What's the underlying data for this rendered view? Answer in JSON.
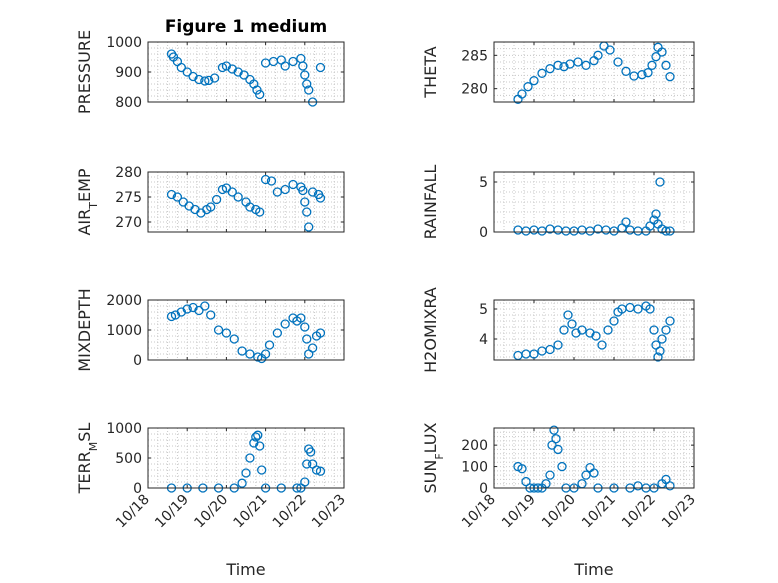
{
  "chart_data": [
    {
      "type": "scatter",
      "ylabel": "PRESSURE",
      "title": "Figure 1 medium",
      "xlabel": "",
      "marker_color": "#0072BD",
      "xlim": [
        0,
        5
      ],
      "ylim": [
        800,
        1000
      ],
      "yticks": [
        800,
        900,
        1000
      ],
      "xticks": [
        0,
        1,
        2,
        3,
        4,
        5
      ],
      "grid": true,
      "x": [
        0.6,
        0.65,
        0.75,
        0.85,
        1.0,
        1.15,
        1.3,
        1.45,
        1.55,
        1.7,
        1.9,
        2.0,
        2.15,
        2.3,
        2.45,
        2.6,
        2.7,
        2.78,
        2.85,
        3.0,
        3.2,
        3.4,
        3.5,
        3.7,
        3.9,
        3.95,
        4.0,
        4.05,
        4.1,
        4.2,
        4.4
      ],
      "y": [
        960,
        950,
        935,
        915,
        900,
        885,
        875,
        870,
        872,
        880,
        915,
        920,
        910,
        900,
        890,
        875,
        860,
        840,
        825,
        930,
        935,
        940,
        920,
        935,
        945,
        920,
        890,
        860,
        840,
        800,
        915
      ]
    },
    {
      "type": "scatter",
      "ylabel": "THETA",
      "title": "",
      "xlabel": "",
      "marker_color": "#0072BD",
      "xlim": [
        0,
        5
      ],
      "ylim": [
        278,
        287
      ],
      "yticks": [
        280,
        285
      ],
      "xticks": [
        0,
        1,
        2,
        3,
        4,
        5
      ],
      "grid": true,
      "x": [
        0.6,
        0.7,
        0.85,
        1.0,
        1.2,
        1.4,
        1.6,
        1.75,
        1.9,
        2.1,
        2.3,
        2.5,
        2.6,
        2.75,
        2.9,
        3.1,
        3.3,
        3.5,
        3.7,
        3.85,
        3.95,
        4.05,
        4.1,
        4.2,
        4.3,
        4.4
      ],
      "y": [
        278.4,
        279.2,
        280.3,
        281.2,
        282.3,
        283.0,
        283.5,
        283.3,
        283.7,
        284.0,
        283.5,
        284.2,
        285.0,
        286.4,
        285.8,
        284.0,
        282.6,
        281.9,
        282.1,
        282.4,
        283.5,
        284.8,
        286.2,
        285.5,
        283.5,
        281.8
      ]
    },
    {
      "type": "scatter",
      "ylabel": "AIR_T EMP",
      "title": "",
      "xlabel": "",
      "marker_color": "#0072BD",
      "xlim": [
        0,
        5
      ],
      "ylim": [
        268,
        280
      ],
      "yticks": [
        270,
        275,
        280
      ],
      "xticks": [
        0,
        1,
        2,
        3,
        4,
        5
      ],
      "grid": true,
      "x": [
        0.6,
        0.75,
        0.9,
        1.05,
        1.2,
        1.35,
        1.5,
        1.6,
        1.75,
        1.9,
        2.0,
        2.15,
        2.3,
        2.5,
        2.6,
        2.75,
        2.85,
        3.0,
        3.15,
        3.3,
        3.5,
        3.7,
        3.9,
        3.95,
        4.0,
        4.05,
        4.1,
        4.2,
        4.35,
        4.4
      ],
      "y": [
        275.5,
        275.0,
        274.0,
        273.2,
        272.5,
        271.8,
        272.5,
        273.0,
        274.5,
        276.5,
        276.8,
        276.0,
        275.0,
        274.0,
        273.0,
        272.5,
        272.0,
        278.5,
        278.2,
        276.0,
        276.5,
        277.5,
        277.0,
        276.3,
        274.0,
        272.0,
        269.0,
        276.0,
        275.5,
        274.8
      ]
    },
    {
      "type": "scatter",
      "ylabel": "RAINFALL",
      "title": "",
      "xlabel": "",
      "marker_color": "#0072BD",
      "xlim": [
        0,
        5
      ],
      "ylim": [
        0,
        6
      ],
      "yticks": [
        0,
        5
      ],
      "xticks": [
        0,
        1,
        2,
        3,
        4,
        5
      ],
      "grid": true,
      "x": [
        0.6,
        0.8,
        1.0,
        1.2,
        1.4,
        1.6,
        1.8,
        2.0,
        2.2,
        2.4,
        2.6,
        2.8,
        3.0,
        3.2,
        3.3,
        3.4,
        3.6,
        3.8,
        3.9,
        4.0,
        4.05,
        4.1,
        4.15,
        4.2,
        4.3,
        4.4
      ],
      "y": [
        0.2,
        0.1,
        0.2,
        0.1,
        0.3,
        0.2,
        0.1,
        0.1,
        0.2,
        0.1,
        0.3,
        0.2,
        0.1,
        0.4,
        1.0,
        0.2,
        0.1,
        0.1,
        0.6,
        1.2,
        1.8,
        0.8,
        5.0,
        0.3,
        0.1,
        0.1
      ]
    },
    {
      "type": "scatter",
      "ylabel": "MIXDEPTH",
      "title": "",
      "xlabel": "",
      "marker_color": "#0072BD",
      "xlim": [
        0,
        5
      ],
      "ylim": [
        0,
        2000
      ],
      "yticks": [
        0,
        1000,
        2000
      ],
      "xticks": [
        0,
        1,
        2,
        3,
        4,
        5
      ],
      "grid": true,
      "x": [
        0.6,
        0.7,
        0.85,
        1.0,
        1.15,
        1.3,
        1.45,
        1.6,
        1.8,
        2.0,
        2.2,
        2.4,
        2.6,
        2.8,
        2.9,
        3.0,
        3.1,
        3.3,
        3.5,
        3.7,
        3.8,
        3.9,
        4.0,
        4.05,
        4.1,
        4.2,
        4.3,
        4.4
      ],
      "y": [
        1450,
        1500,
        1600,
        1700,
        1750,
        1650,
        1800,
        1500,
        1000,
        900,
        700,
        300,
        200,
        100,
        50,
        200,
        500,
        900,
        1200,
        1400,
        1300,
        1400,
        1100,
        700,
        200,
        400,
        800,
        900
      ]
    },
    {
      "type": "scatter",
      "ylabel": "H2OMIXRA",
      "title": "",
      "xlabel": "",
      "marker_color": "#0072BD",
      "xlim": [
        0,
        5
      ],
      "ylim": [
        3.3,
        5.3
      ],
      "yticks": [
        4,
        5
      ],
      "xticks": [
        0,
        1,
        2,
        3,
        4,
        5
      ],
      "grid": true,
      "x": [
        0.6,
        0.8,
        1.0,
        1.2,
        1.4,
        1.6,
        1.75,
        1.85,
        1.95,
        2.05,
        2.2,
        2.4,
        2.55,
        2.7,
        2.85,
        3.0,
        3.1,
        3.2,
        3.4,
        3.6,
        3.8,
        3.9,
        4.0,
        4.05,
        4.1,
        4.15,
        4.2,
        4.3,
        4.4
      ],
      "y": [
        3.45,
        3.5,
        3.5,
        3.6,
        3.65,
        3.8,
        4.3,
        4.8,
        4.5,
        4.2,
        4.3,
        4.2,
        4.1,
        3.8,
        4.3,
        4.6,
        4.9,
        5.0,
        5.05,
        5.0,
        5.1,
        5.0,
        4.3,
        3.8,
        3.4,
        3.6,
        4.0,
        4.3,
        4.6
      ]
    },
    {
      "type": "scatter",
      "ylabel": "TERR_M SL",
      "title": "",
      "xlabel": "Time",
      "marker_color": "#0072BD",
      "xlim": [
        0,
        5
      ],
      "ylim": [
        0,
        1000
      ],
      "yticks": [
        0,
        500,
        1000
      ],
      "xticks": [
        0,
        1,
        2,
        3,
        4,
        5
      ],
      "xticklabels": [
        "10/18",
        "10/19",
        "10/20",
        "10/21",
        "10/22",
        "10/23"
      ],
      "grid": true,
      "x": [
        0.6,
        1.0,
        1.4,
        1.8,
        2.2,
        2.4,
        2.5,
        2.6,
        2.7,
        2.75,
        2.8,
        2.85,
        2.9,
        3.0,
        3.4,
        3.8,
        3.9,
        4.0,
        4.05,
        4.1,
        4.15,
        4.2,
        4.3,
        4.4
      ],
      "y": [
        0,
        0,
        0,
        0,
        0,
        80,
        250,
        500,
        750,
        850,
        880,
        700,
        300,
        0,
        0,
        0,
        0,
        100,
        400,
        650,
        600,
        400,
        300,
        280
      ]
    },
    {
      "type": "scatter",
      "ylabel": "SUN_F LUX",
      "title": "",
      "xlabel": "Time",
      "marker_color": "#0072BD",
      "xlim": [
        0,
        5
      ],
      "ylim": [
        0,
        280
      ],
      "yticks": [
        0,
        100,
        200
      ],
      "xticks": [
        0,
        1,
        2,
        3,
        4,
        5
      ],
      "xticklabels": [
        "10/18",
        "10/19",
        "10/20",
        "10/21",
        "10/22",
        "10/23"
      ],
      "grid": true,
      "x": [
        0.6,
        0.7,
        0.8,
        0.9,
        1.0,
        1.1,
        1.2,
        1.3,
        1.4,
        1.45,
        1.5,
        1.55,
        1.6,
        1.7,
        1.8,
        2.0,
        2.2,
        2.3,
        2.4,
        2.5,
        2.6,
        3.0,
        3.4,
        3.6,
        3.8,
        4.0,
        4.2,
        4.3,
        4.4
      ],
      "y": [
        100,
        90,
        30,
        0,
        0,
        0,
        0,
        20,
        60,
        200,
        270,
        230,
        180,
        100,
        0,
        0,
        20,
        60,
        95,
        70,
        0,
        0,
        0,
        10,
        0,
        0,
        20,
        40,
        10
      ]
    }
  ]
}
